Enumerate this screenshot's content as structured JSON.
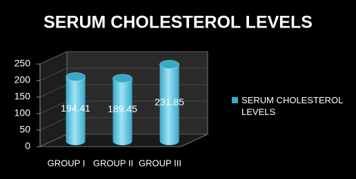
{
  "chart_data": {
    "type": "bar",
    "title": "SERUM CHOLESTEROL LEVELS",
    "categories": [
      "GROUP I",
      "GROUP II",
      "GROUP III"
    ],
    "series": [
      {
        "name": "SERUM CHOLESTEROL LEVELS",
        "color": "#3aa8c8",
        "values": [
          194.41,
          189.45,
          231.85
        ]
      }
    ],
    "ylim": [
      0,
      250
    ],
    "yticks": [
      0,
      50,
      100,
      150,
      200,
      250
    ],
    "grid": true,
    "legend": "right"
  }
}
